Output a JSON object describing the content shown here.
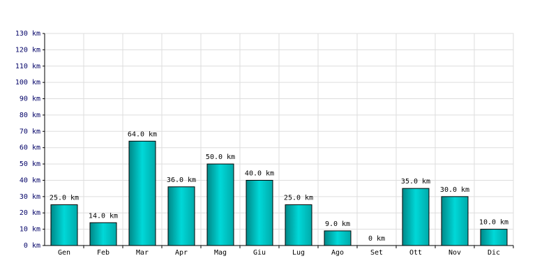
{
  "chart_data": {
    "type": "bar",
    "categories": [
      "Gen",
      "Feb",
      "Mar",
      "Apr",
      "Mag",
      "Giu",
      "Lug",
      "Ago",
      "Set",
      "Ott",
      "Nov",
      "Dic"
    ],
    "values": [
      25,
      14,
      64,
      36,
      50,
      40,
      25,
      9,
      0,
      35,
      30,
      10
    ],
    "value_labels": [
      "25.0 km",
      "14.0 km",
      "64.0 km",
      "36.0 km",
      "50.0 km",
      "40.0 km",
      "25.0 km",
      "9.0 km",
      "0 km",
      "35.0 km",
      "30.0 km",
      "10.0 km"
    ],
    "color": "#00d8d8",
    "ylim": [
      0,
      130
    ],
    "yticks": [
      {
        "value": 0,
        "label": "0 km"
      },
      {
        "value": 10,
        "label": "10 km"
      },
      {
        "value": 20,
        "label": "20 km"
      },
      {
        "value": 30,
        "label": "30 km"
      },
      {
        "value": 40,
        "label": "40 km"
      },
      {
        "value": 50,
        "label": "50 km"
      },
      {
        "value": 60,
        "label": "60 km"
      },
      {
        "value": 70,
        "label": "70 km"
      },
      {
        "value": 80,
        "label": "80 km"
      },
      {
        "value": 90,
        "label": "90 km"
      },
      {
        "value": 100,
        "label": "100 km"
      },
      {
        "value": 110,
        "label": "110 km"
      },
      {
        "value": 120,
        "label": "120 km"
      },
      {
        "value": 130,
        "label": "130 km"
      }
    ],
    "grid": true
  }
}
